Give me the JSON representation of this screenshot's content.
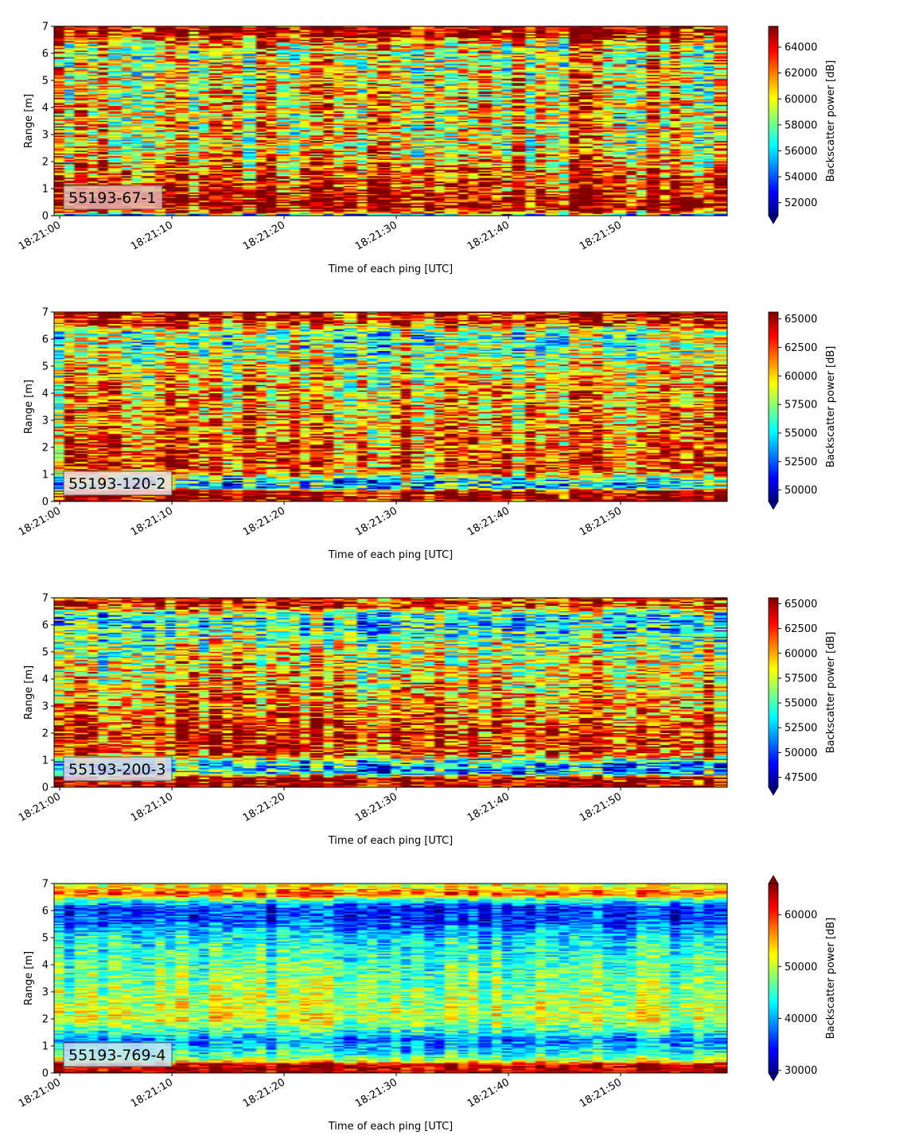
{
  "chart_data": [
    {
      "type": "heatmap",
      "panel_label": "55193-67-1",
      "panel_label_bg": "#e8b4b4",
      "xlabel": "Time of each ping [UTC]",
      "ylabel": "Range [m]",
      "x_ticks": [
        "18:21:00",
        "18:21:10",
        "18:21:20",
        "18:21:30",
        "18:21:40",
        "18:21:50"
      ],
      "x_tick_seconds": [
        0,
        10,
        20,
        30,
        40,
        50
      ],
      "xlim_seconds": [
        -0.5,
        59.5
      ],
      "y_ticks": [
        0,
        1,
        2,
        3,
        4,
        5,
        6,
        7
      ],
      "ylim": [
        0,
        7
      ],
      "colorbar_label": "Backscatter power [dB]",
      "colorbar_range": [
        51000,
        65600
      ],
      "colorbar_ticks": [
        52000,
        54000,
        56000,
        58000,
        60000,
        62000,
        64000
      ],
      "colorbar_extend": "min",
      "colormap": "jet",
      "profile": [
        [
          0.0,
          0.25
        ],
        [
          0.15,
          0.9
        ],
        [
          0.4,
          0.98
        ],
        [
          0.9,
          0.88
        ],
        [
          1.3,
          0.85
        ],
        [
          1.6,
          0.8
        ],
        [
          2.0,
          0.72
        ],
        [
          2.5,
          0.62
        ],
        [
          3.2,
          0.64
        ],
        [
          4.0,
          0.68
        ],
        [
          5.0,
          0.62
        ],
        [
          6.0,
          0.6
        ],
        [
          6.4,
          0.7
        ],
        [
          6.65,
          0.96
        ],
        [
          7.0,
          0.97
        ]
      ],
      "noise": 0.3
    },
    {
      "type": "heatmap",
      "panel_label": "55193-120-2",
      "panel_label_bg": "#f0e0e0",
      "xlabel": "Time of each ping [UTC]",
      "ylabel": "Range [m]",
      "x_ticks": [
        "18:21:00",
        "18:21:10",
        "18:21:20",
        "18:21:30",
        "18:21:40",
        "18:21:50"
      ],
      "x_tick_seconds": [
        0,
        10,
        20,
        30,
        40,
        50
      ],
      "xlim_seconds": [
        -0.5,
        59.5
      ],
      "y_ticks": [
        0,
        1,
        2,
        3,
        4,
        5,
        6,
        7
      ],
      "ylim": [
        0,
        7
      ],
      "colorbar_label": "Backscatter power [dB]",
      "colorbar_range": [
        49000,
        65600
      ],
      "colorbar_ticks": [
        50000,
        52500,
        55000,
        57500,
        60000,
        62500,
        65000
      ],
      "colorbar_extend": "min",
      "colormap": "jet",
      "profile": [
        [
          0.0,
          0.98
        ],
        [
          0.35,
          0.98
        ],
        [
          0.5,
          0.32
        ],
        [
          0.8,
          0.38
        ],
        [
          1.1,
          0.8
        ],
        [
          1.5,
          0.82
        ],
        [
          2.0,
          0.78
        ],
        [
          3.0,
          0.72
        ],
        [
          4.0,
          0.7
        ],
        [
          5.0,
          0.6
        ],
        [
          5.8,
          0.48
        ],
        [
          6.3,
          0.5
        ],
        [
          6.6,
          0.88
        ],
        [
          7.0,
          0.92
        ]
      ],
      "noise": 0.28
    },
    {
      "type": "heatmap",
      "panel_label": "55193-200-3",
      "panel_label_bg": "#d8d8f0",
      "xlabel": "Time of each ping [UTC]",
      "ylabel": "Range [m]",
      "x_ticks": [
        "18:21:00",
        "18:21:10",
        "18:21:20",
        "18:21:30",
        "18:21:40",
        "18:21:50"
      ],
      "x_tick_seconds": [
        0,
        10,
        20,
        30,
        40,
        50
      ],
      "xlim_seconds": [
        -0.5,
        59.5
      ],
      "y_ticks": [
        0,
        1,
        2,
        3,
        4,
        5,
        6,
        7
      ],
      "ylim": [
        0,
        7
      ],
      "colorbar_label": "Backscatter power [dB]",
      "colorbar_range": [
        46500,
        65600
      ],
      "colorbar_ticks": [
        47500,
        50000,
        52500,
        55000,
        57500,
        60000,
        62500,
        65000
      ],
      "colorbar_extend": "min",
      "colormap": "jet",
      "profile": [
        [
          0.0,
          0.98
        ],
        [
          0.35,
          0.95
        ],
        [
          0.5,
          0.3
        ],
        [
          0.9,
          0.35
        ],
        [
          1.2,
          0.82
        ],
        [
          1.8,
          0.86
        ],
        [
          2.5,
          0.8
        ],
        [
          3.5,
          0.7
        ],
        [
          4.5,
          0.62
        ],
        [
          5.5,
          0.5
        ],
        [
          6.1,
          0.38
        ],
        [
          6.4,
          0.45
        ],
        [
          6.7,
          0.88
        ],
        [
          7.0,
          0.85
        ]
      ],
      "noise": 0.28
    },
    {
      "type": "heatmap",
      "panel_label": "55193-769-4",
      "panel_label_bg": "#c8e4f4",
      "xlabel": "Time of each ping [UTC]",
      "ylabel": "Range [m]",
      "x_ticks": [
        "18:21:00",
        "18:21:10",
        "18:21:20",
        "18:21:30",
        "18:21:40",
        "18:21:50"
      ],
      "x_tick_seconds": [
        0,
        10,
        20,
        30,
        40,
        50
      ],
      "xlim_seconds": [
        -0.5,
        59.5
      ],
      "y_ticks": [
        0,
        1,
        2,
        3,
        4,
        5,
        6,
        7
      ],
      "ylim": [
        0,
        7
      ],
      "colorbar_label": "Backscatter power [dB]",
      "colorbar_range": [
        29500,
        66000
      ],
      "colorbar_ticks": [
        30000,
        40000,
        50000,
        60000
      ],
      "colorbar_extend": "both",
      "colormap": "jet",
      "profile": [
        [
          0.0,
          0.95
        ],
        [
          0.3,
          0.92
        ],
        [
          0.45,
          0.55
        ],
        [
          0.8,
          0.35
        ],
        [
          1.2,
          0.25
        ],
        [
          1.5,
          0.4
        ],
        [
          2.0,
          0.58
        ],
        [
          3.0,
          0.52
        ],
        [
          4.0,
          0.45
        ],
        [
          5.0,
          0.36
        ],
        [
          5.6,
          0.18
        ],
        [
          6.1,
          0.16
        ],
        [
          6.4,
          0.45
        ],
        [
          6.6,
          0.8
        ],
        [
          7.0,
          0.55
        ]
      ],
      "noise": 0.14
    }
  ]
}
